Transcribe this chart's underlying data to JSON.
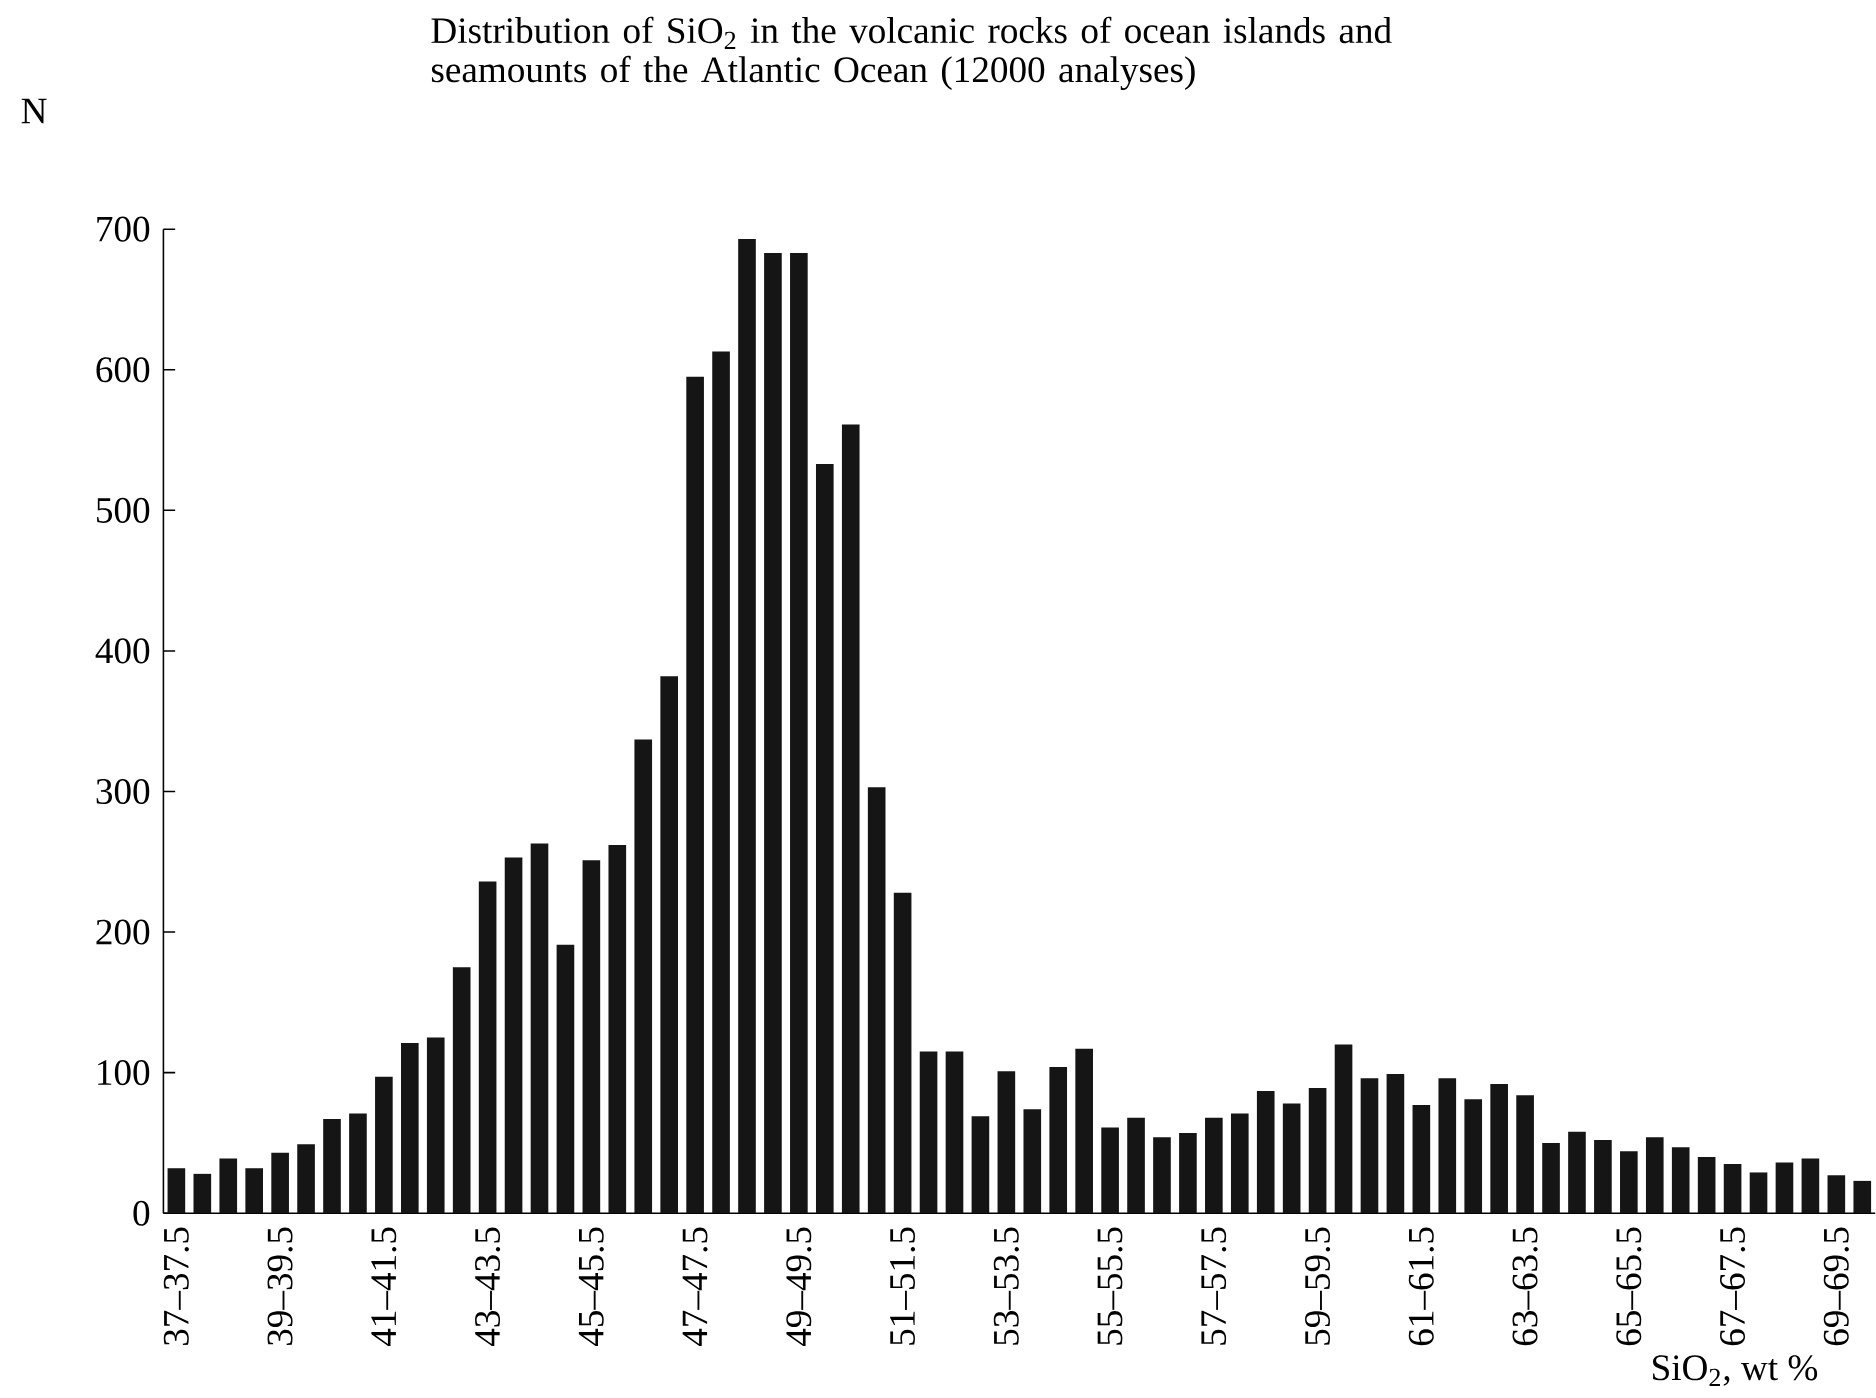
{
  "chart_data": {
    "type": "bar",
    "title": "Distribution of SiO$_{2}$ in the volcanic rocks of ocean islands and seamounts of the Atlantic Ocean (12000 analyses)",
    "xlabel": "SiO$_{2}$, wt %",
    "ylabel": "N",
    "categories": [
      "37–37.5",
      null,
      null,
      null,
      "39–39.5",
      null,
      null,
      null,
      "41–41.5",
      null,
      null,
      null,
      "43–43.5",
      null,
      null,
      null,
      "45–45.5",
      null,
      null,
      null,
      "47–47.5",
      null,
      null,
      null,
      "49–49.5",
      null,
      null,
      null,
      "51–51.5",
      null,
      null,
      null,
      "53–53.5",
      null,
      null,
      null,
      "55–55.5",
      null,
      null,
      null,
      "57–57.5",
      null,
      null,
      null,
      "59–59.5",
      null,
      null,
      null,
      "61–61.5",
      null,
      null,
      null,
      "63–63.5",
      null,
      null,
      null,
      "65–65.5",
      null,
      null,
      null,
      "67–67.5",
      null,
      null,
      null,
      "69–69.5",
      null
    ],
    "values": [
      32,
      28,
      39,
      32,
      43,
      49,
      67,
      71,
      97,
      121,
      125,
      175,
      236,
      253,
      263,
      191,
      251,
      262,
      337,
      382,
      595,
      613,
      693,
      683,
      683,
      533,
      561,
      303,
      228,
      115,
      115,
      69,
      101,
      74,
      104,
      117,
      61,
      68,
      54,
      57,
      68,
      71,
      87,
      78,
      89,
      120,
      96,
      99,
      77,
      96,
      81,
      92,
      84,
      50,
      58,
      52,
      44,
      54,
      47,
      40,
      35,
      29,
      36,
      39,
      27,
      23
    ],
    "color": "#151515",
    "ylim": [
      0,
      700
    ],
    "yticks": [
      0,
      100,
      200,
      300,
      400,
      500,
      600,
      700
    ],
    "grid": false
  }
}
